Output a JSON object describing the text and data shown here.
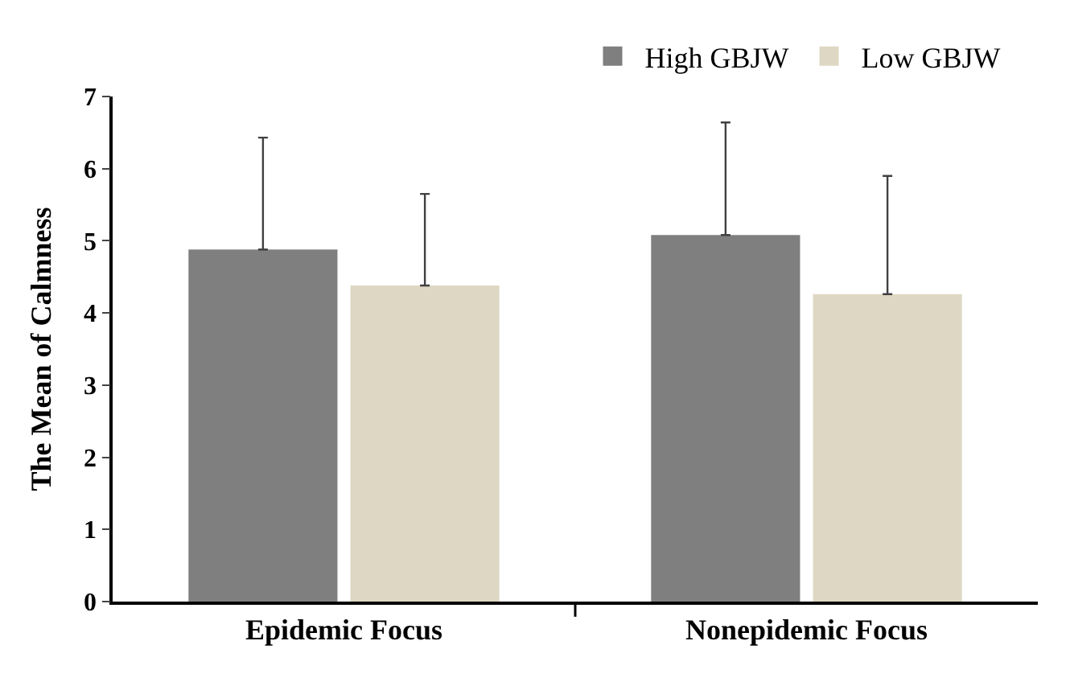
{
  "chart_data": {
    "type": "bar",
    "ylabel": "The Mean of Calmness",
    "categories": [
      "Epidemic Focus",
      "Nonepidemic Focus"
    ],
    "series": [
      {
        "name": "High GBJW",
        "color": "#7f7f7f",
        "values": [
          4.88,
          5.08
        ],
        "errors": [
          [
            4.88,
            6.43
          ],
          [
            5.08,
            6.64
          ]
        ]
      },
      {
        "name": "Low GBJW",
        "color": "#ded7c3",
        "values": [
          4.38,
          4.26
        ],
        "errors": [
          [
            4.38,
            5.65
          ],
          [
            4.26,
            5.9
          ]
        ]
      }
    ],
    "ylim": [
      0,
      7
    ],
    "yticks": [
      0,
      1,
      2,
      3,
      4,
      5,
      6,
      7
    ],
    "legend": "top right"
  }
}
